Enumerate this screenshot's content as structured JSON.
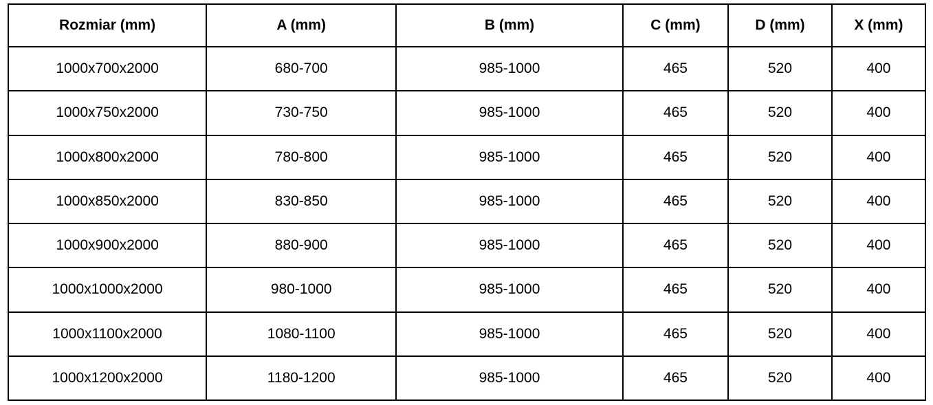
{
  "table": {
    "title": "shower-enclosure-dimensions",
    "unit": "mm",
    "headers": [
      "Rozmiar (mm)",
      "A (mm)",
      "B (mm)",
      "C (mm)",
      "D (mm)",
      "X (mm)"
    ],
    "rows": [
      [
        "1000x700x2000",
        "680-700",
        "985-1000",
        "465",
        "520",
        "400"
      ],
      [
        "1000x750x2000",
        "730-750",
        "985-1000",
        "465",
        "520",
        "400"
      ],
      [
        "1000x800x2000",
        "780-800",
        "985-1000",
        "465",
        "520",
        "400"
      ],
      [
        "1000x850x2000",
        "830-850",
        "985-1000",
        "465",
        "520",
        "400"
      ],
      [
        "1000x900x2000",
        "880-900",
        "985-1000",
        "465",
        "520",
        "400"
      ],
      [
        "1000x1000x2000",
        "980-1000",
        "985-1000",
        "465",
        "520",
        "400"
      ],
      [
        "1000x1100x2000",
        "1080-1100",
        "985-1000",
        "465",
        "520",
        "400"
      ],
      [
        "1000x1200x2000",
        "1180-1200",
        "985-1000",
        "465",
        "520",
        "400"
      ]
    ],
    "colors": {
      "border": "#000000",
      "text": "#000000",
      "background": "#ffffff"
    }
  }
}
